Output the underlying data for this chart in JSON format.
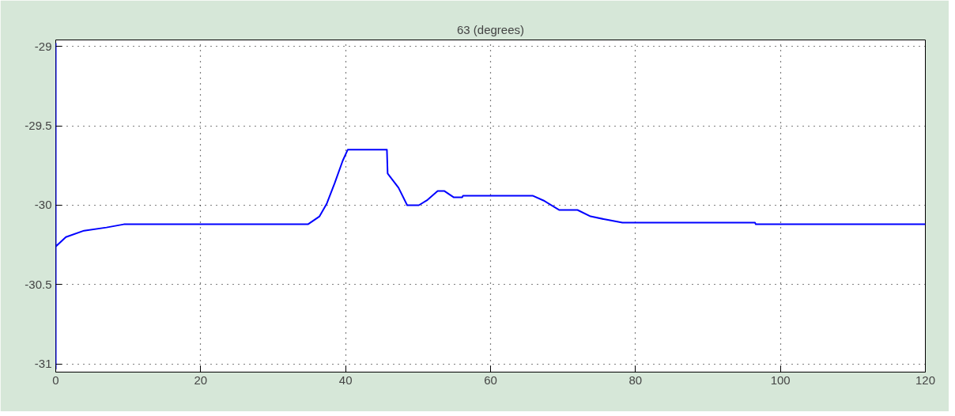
{
  "chart_data": {
    "type": "line",
    "title": "63 (degrees)",
    "x": [
      0,
      0,
      0,
      1.4,
      3.9,
      7,
      9.4,
      34.8,
      36.4,
      37.4,
      38.5,
      39.6,
      40.3,
      45.7,
      45.8,
      47.3,
      48.5,
      50.1,
      51.2,
      52.7,
      53.6,
      54.9,
      56.1,
      56.2,
      65.8,
      67.3,
      69.5,
      72,
      73.8,
      75.9,
      78.2,
      96.5,
      96.6,
      120
    ],
    "series": [
      {
        "color": "#0000ff",
        "values": [
          -28.98,
          -31.03,
          -30.26,
          -30.2,
          -30.16,
          -30.14,
          -30.12,
          -30.12,
          -30.07,
          -29.99,
          -29.86,
          -29.72,
          -29.65,
          -29.65,
          -29.8,
          -29.89,
          -30.0,
          -30.0,
          -29.97,
          -29.91,
          -29.91,
          -29.95,
          -29.95,
          -29.94,
          -29.94,
          -29.97,
          -30.03,
          -30.03,
          -30.07,
          -30.09,
          -30.11,
          -30.11,
          -30.12,
          -30.12
        ]
      }
    ],
    "xlim": [
      0,
      120
    ],
    "ylim": [
      -31.05,
      -28.96
    ],
    "xticks": [
      0,
      20,
      40,
      60,
      80,
      100,
      120
    ],
    "yticks": [
      -31,
      -30.5,
      -30,
      -29.5,
      -29
    ],
    "grid": true,
    "line_style": "solid",
    "marker": "none"
  }
}
